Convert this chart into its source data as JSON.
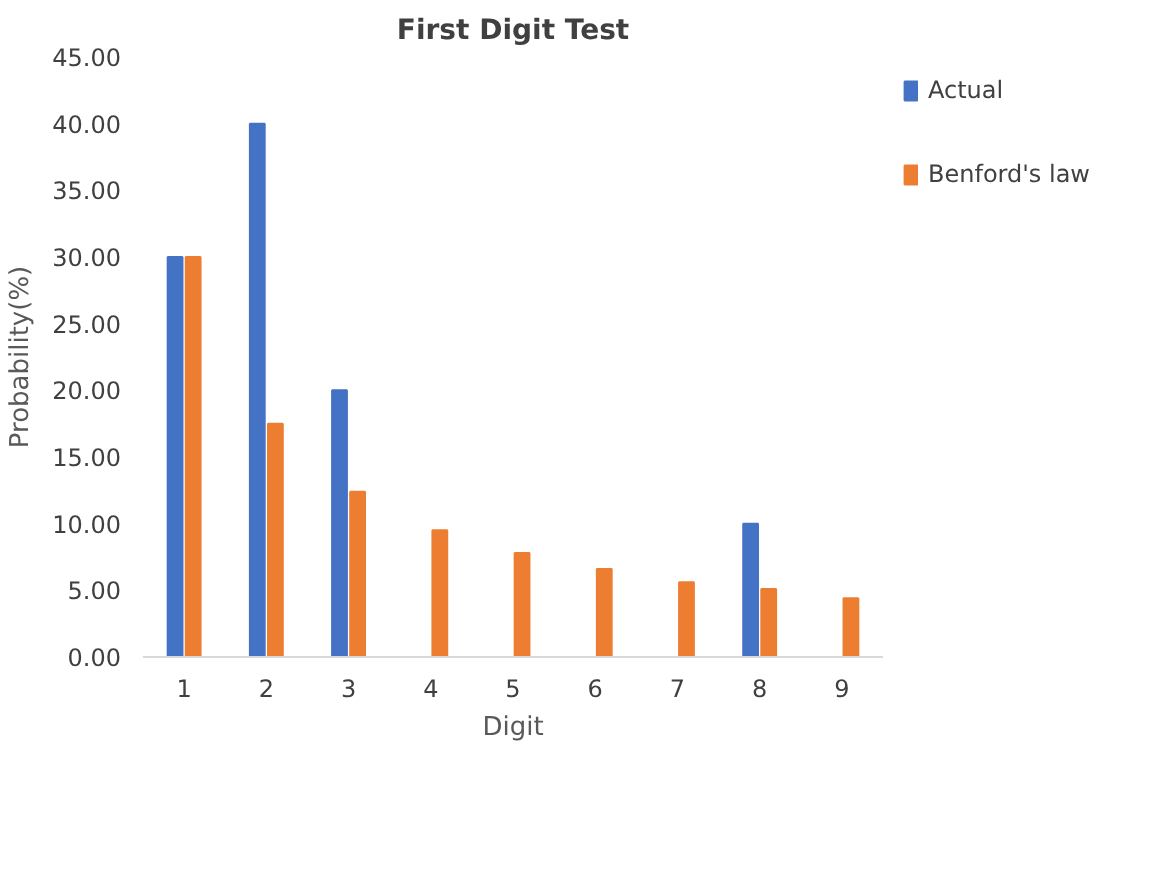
{
  "chart_data": {
    "type": "bar",
    "title": "First Digit Test",
    "xlabel": "Digit",
    "ylabel": "Probability(%)",
    "categories": [
      "1",
      "2",
      "3",
      "4",
      "5",
      "6",
      "7",
      "8",
      "9"
    ],
    "series": [
      {
        "name": "Actual",
        "color": "#4472c4",
        "values": [
          30,
          40,
          20,
          0,
          0,
          0,
          0,
          10,
          0
        ]
      },
      {
        "name": "Benford's law",
        "color": "#ed7d31",
        "values": [
          30,
          17.5,
          12.4,
          9.5,
          7.8,
          6.6,
          5.6,
          5.1,
          4.4
        ]
      }
    ],
    "ylim": [
      0,
      45
    ],
    "yticks": [
      {
        "value": 0,
        "label": "0.00"
      },
      {
        "value": 5,
        "label": "5.00"
      },
      {
        "value": 10,
        "label": "10.00"
      },
      {
        "value": 15,
        "label": "15.00"
      },
      {
        "value": 20,
        "label": "20.00"
      },
      {
        "value": 25,
        "label": "25.00"
      },
      {
        "value": 30,
        "label": "30.00"
      },
      {
        "value": 35,
        "label": "35.00"
      },
      {
        "value": 40,
        "label": "40.00"
      },
      {
        "value": 45,
        "label": "45.00"
      }
    ],
    "grid": false,
    "legend": "top right"
  }
}
